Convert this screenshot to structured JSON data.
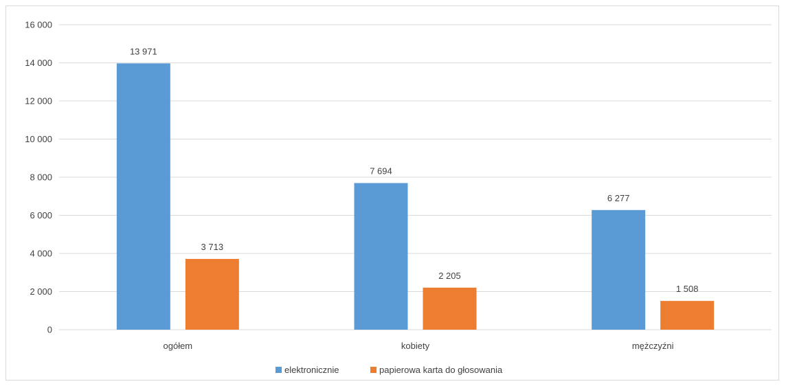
{
  "chart_data": {
    "type": "bar",
    "title": "",
    "xlabel": "",
    "ylabel": "",
    "categories": [
      "ogółem",
      "kobiety",
      "mężczyźni"
    ],
    "series": [
      {
        "name": "elektronicznie",
        "color": "#5b9bd5",
        "values": [
          13971,
          7694,
          6277
        ],
        "labels": [
          "13 971",
          "7 694",
          "6 277"
        ]
      },
      {
        "name": "papierowa karta do głosowania",
        "color": "#ed7d31",
        "values": [
          3713,
          2205,
          1508
        ],
        "labels": [
          "3 713",
          "2 205",
          "1 508"
        ]
      }
    ],
    "ylim": [
      0,
      16000
    ],
    "yticks": [
      0,
      2000,
      4000,
      6000,
      8000,
      10000,
      12000,
      14000,
      16000
    ],
    "ytick_labels": [
      "0",
      "2 000",
      "4 000",
      "6 000",
      "8 000",
      "10 000",
      "12 000",
      "14 000",
      "16 000"
    ],
    "grid": true,
    "legend_position": "bottom"
  }
}
